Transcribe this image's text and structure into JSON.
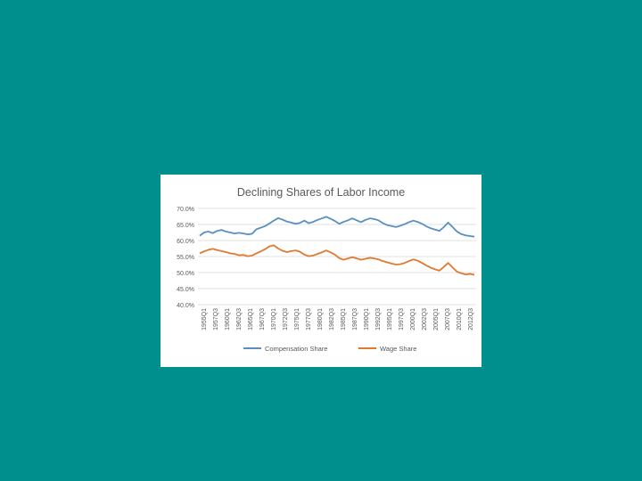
{
  "slide": {
    "background": "#008f8c"
  },
  "chart_data": {
    "type": "line",
    "title": "Declining Shares of Labor Income",
    "xlabel": "",
    "ylabel": "",
    "ylim": [
      40,
      70
    ],
    "y_ticks": [
      "70.0%",
      "65.0%",
      "60.0%",
      "55.0%",
      "50.0%",
      "45.0%",
      "40.0%"
    ],
    "y_tick_values": [
      70,
      65,
      60,
      55,
      50,
      45,
      40
    ],
    "x_tick_labels": [
      "1955Q1",
      "1957Q3",
      "1960Q1",
      "1962Q3",
      "1965Q1",
      "1967Q3",
      "1970Q1",
      "1972Q3",
      "1975Q1",
      "1977Q3",
      "1980Q1",
      "1982Q3",
      "1985Q1",
      "1987Q3",
      "1990Q1",
      "1992Q3",
      "1995Q1",
      "1997Q3",
      "2000Q1",
      "2002Q3",
      "2005Q1",
      "2007Q3",
      "2010Q1",
      "2012Q3"
    ],
    "grid": true,
    "legend_position": "bottom",
    "series": [
      {
        "name": "Compensation Share",
        "color": "#5b8fc1",
        "values": [
          61.5,
          62.5,
          62.8,
          62.3,
          63.0,
          63.3,
          62.8,
          62.5,
          62.2,
          62.4,
          62.2,
          61.9,
          62.1,
          63.5,
          64.0,
          64.5,
          65.3,
          66.2,
          67.0,
          66.5,
          65.9,
          65.6,
          65.2,
          65.5,
          66.2,
          65.4,
          65.8,
          66.4,
          66.9,
          67.4,
          66.8,
          66.1,
          65.2,
          65.8,
          66.3,
          66.9,
          66.3,
          65.7,
          66.4,
          66.9,
          66.7,
          66.3,
          65.4,
          64.8,
          64.5,
          64.2,
          64.6,
          65.1,
          65.7,
          66.2,
          65.8,
          65.2,
          64.4,
          63.8,
          63.4,
          63.0,
          64.2,
          65.6,
          64.2,
          62.8,
          62.0,
          61.6,
          61.4,
          61.2
        ]
      },
      {
        "name": "Wage Share",
        "color": "#e07a2f",
        "values": [
          56.0,
          56.6,
          57.1,
          57.4,
          57.0,
          56.7,
          56.4,
          56.0,
          55.8,
          55.4,
          55.5,
          55.1,
          55.3,
          56.0,
          56.6,
          57.3,
          58.2,
          58.5,
          57.5,
          56.8,
          56.4,
          56.7,
          56.9,
          56.5,
          55.6,
          55.1,
          55.3,
          55.8,
          56.3,
          56.9,
          56.3,
          55.6,
          54.5,
          54.0,
          54.4,
          54.8,
          54.4,
          54.0,
          54.3,
          54.6,
          54.4,
          54.1,
          53.6,
          53.2,
          52.8,
          52.5,
          52.6,
          53.0,
          53.6,
          54.1,
          53.7,
          53.0,
          52.2,
          51.5,
          51.0,
          50.6,
          51.8,
          53.0,
          51.6,
          50.3,
          49.8,
          49.4,
          49.6,
          49.3
        ]
      }
    ]
  }
}
